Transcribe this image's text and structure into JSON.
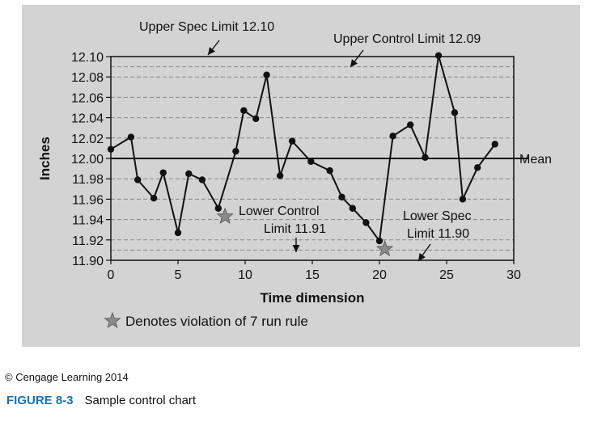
{
  "chart_data": {
    "type": "line",
    "xlabel": "Time dimension",
    "ylabel": "Inches",
    "xlim": [
      0,
      30
    ],
    "ylim": [
      11.9,
      12.1
    ],
    "x_ticks": [
      "0",
      "5",
      "10",
      "15",
      "20",
      "25",
      "30"
    ],
    "y_ticks": [
      "12.10",
      "12.08",
      "12.06",
      "12.04",
      "12.02",
      "12.00",
      "11.98",
      "11.96",
      "11.94",
      "11.92",
      "11.90"
    ],
    "points": [
      [
        0,
        12.009
      ],
      [
        1.5,
        12.021
      ],
      [
        2,
        11.979
      ],
      [
        3.2,
        11.961
      ],
      [
        3.9,
        11.986
      ],
      [
        5,
        11.927
      ],
      [
        5.8,
        11.985
      ],
      [
        6.8,
        11.979
      ],
      [
        8,
        11.951
      ],
      [
        9.3,
        12.007
      ],
      [
        9.9,
        12.047
      ],
      [
        10.8,
        12.039
      ],
      [
        11.6,
        12.082
      ],
      [
        12.6,
        11.983
      ],
      [
        13.5,
        12.017
      ],
      [
        14.9,
        11.997
      ],
      [
        16.3,
        11.988
      ],
      [
        17.2,
        11.962
      ],
      [
        18,
        11.951
      ],
      [
        19,
        11.937
      ],
      [
        20,
        11.919
      ],
      [
        21,
        12.022
      ],
      [
        22.3,
        12.033
      ],
      [
        23.4,
        12.001
      ],
      [
        24.4,
        12.101
      ],
      [
        25.6,
        12.045
      ],
      [
        26.2,
        11.96
      ],
      [
        27.3,
        11.991
      ],
      [
        28.6,
        12.014
      ]
    ],
    "reference_lines": {
      "mean": 12.0,
      "upper_control": 12.09,
      "lower_control": 11.91,
      "upper_spec": 12.1,
      "lower_spec": 11.9
    },
    "violations": [
      [
        8.5,
        11.943
      ],
      [
        20.4,
        11.911
      ]
    ],
    "annotations": {
      "upper_spec": "Upper Spec Limit 12.10",
      "upper_control": "Upper Control Limit 12.09",
      "mean": "Mean",
      "lower_control_line1": "Lower Control",
      "lower_control_line2": "Limit 11.91",
      "lower_spec_line1": "Lower Spec",
      "lower_spec_line2": "Limit 11.90",
      "legend": "Denotes violation of 7 run rule"
    },
    "colors": {
      "panel": "#d3d3d3",
      "line": "#111111",
      "star": "#8a8a8a",
      "figure_label": "#1b6fb5"
    }
  },
  "footer": {
    "copyright": "© Cengage Learning 2014",
    "figure_label": "FIGURE 8-3",
    "figure_title": "Sample control chart"
  }
}
